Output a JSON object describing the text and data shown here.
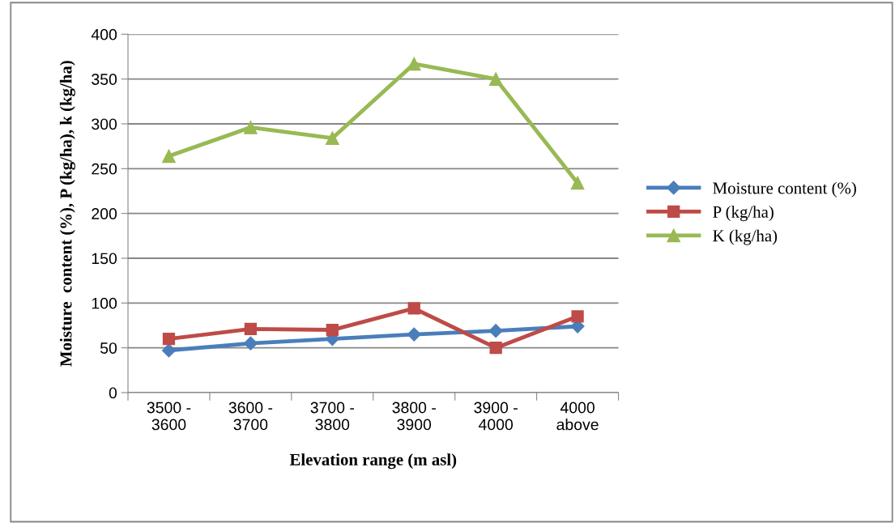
{
  "chart_data": {
    "type": "line",
    "xlabel": "Elevation range (m asl)",
    "ylabel": "Moisture  content (%), P (kg/ha), k (kg/ha)",
    "categories": [
      "3500 -\n3600",
      "3600 -\n3700",
      "3700 -\n3800",
      "3800 -\n3900",
      "3900 -\n4000",
      "4000\nabove"
    ],
    "series": [
      {
        "name": "Moisture content (%)",
        "color": "#4a7ebb",
        "marker": "diamond",
        "values": [
          47,
          55,
          60,
          65,
          69,
          74
        ]
      },
      {
        "name": "P (kg/ha)",
        "color": "#be4b48",
        "marker": "square",
        "values": [
          60,
          71,
          70,
          94,
          50,
          85
        ]
      },
      {
        "name": "K (kg/ha)",
        "color": "#98b954",
        "marker": "triangle",
        "values": [
          264,
          296,
          284,
          367,
          350,
          234
        ]
      }
    ],
    "ylim": [
      0,
      400
    ],
    "yticks": [
      0,
      50,
      100,
      150,
      200,
      250,
      300,
      350,
      400
    ],
    "grid": "y",
    "legend": "right"
  }
}
